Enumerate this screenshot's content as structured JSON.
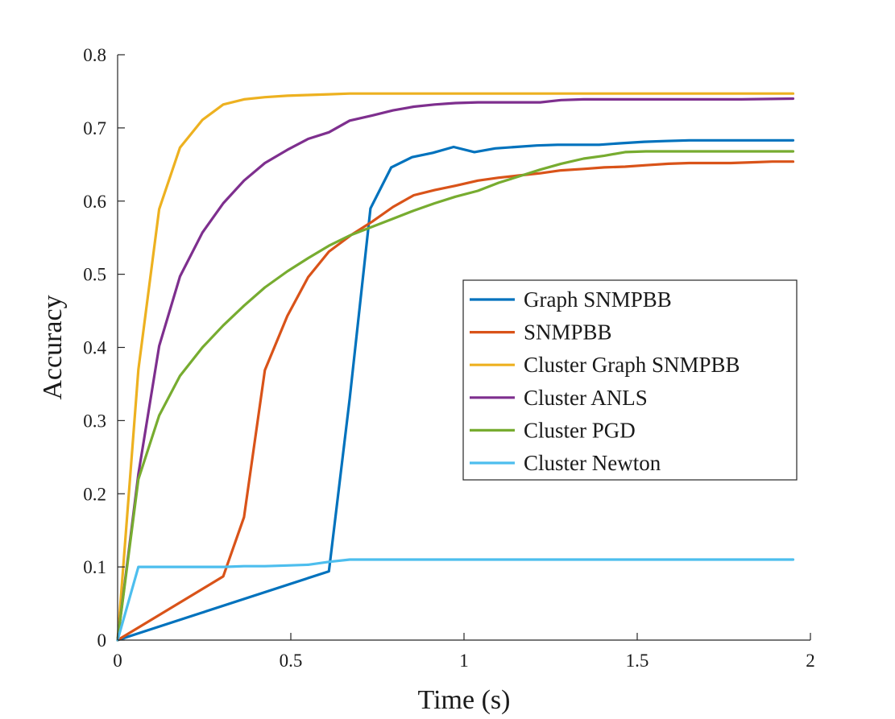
{
  "chart_data": {
    "type": "line",
    "title": "",
    "xlabel": "Time (s)",
    "ylabel": "Accuracy",
    "xlim": [
      0,
      2
    ],
    "ylim": [
      0,
      0.8
    ],
    "xticks": [
      0,
      0.5,
      1,
      1.5,
      2
    ],
    "xtick_labels": [
      "0",
      "0.5",
      "1",
      "1.5",
      "2"
    ],
    "yticks": [
      0,
      0.1,
      0.2,
      0.3,
      0.4,
      0.5,
      0.6,
      0.7,
      0.8
    ],
    "ytick_labels": [
      "0",
      "0.1",
      "0.2",
      "0.3",
      "0.4",
      "0.5",
      "0.6",
      "0.7",
      "0.8"
    ],
    "grid": false,
    "legend_position": "center-right",
    "series": [
      {
        "name": "Graph SNMPBB",
        "color": "#0072BD",
        "x": [
          0,
          0.61,
          0.67,
          0.73,
          0.79,
          0.85,
          0.91,
          0.97,
          1.03,
          1.09,
          1.15,
          1.21,
          1.27,
          1.33,
          1.39,
          1.45,
          1.52,
          1.58,
          1.65,
          1.72,
          1.8,
          1.88,
          1.95
        ],
        "y": [
          0,
          0.094,
          0.33,
          0.59,
          0.646,
          0.66,
          0.666,
          0.674,
          0.667,
          0.672,
          0.674,
          0.676,
          0.677,
          0.677,
          0.677,
          0.679,
          0.681,
          0.682,
          0.683,
          0.683,
          0.683,
          0.683,
          0.683
        ]
      },
      {
        "name": "SNMPBB",
        "color": "#D95319",
        "x": [
          0,
          0.305,
          0.365,
          0.425,
          0.49,
          0.55,
          0.61,
          0.675,
          0.735,
          0.795,
          0.855,
          0.915,
          0.975,
          1.04,
          1.1,
          1.16,
          1.22,
          1.28,
          1.345,
          1.405,
          1.465,
          1.525,
          1.59,
          1.65,
          1.71,
          1.77,
          1.83,
          1.89,
          1.95
        ],
        "y": [
          0,
          0.087,
          0.168,
          0.369,
          0.443,
          0.496,
          0.531,
          0.554,
          0.572,
          0.592,
          0.608,
          0.615,
          0.621,
          0.628,
          0.632,
          0.635,
          0.638,
          0.642,
          0.644,
          0.646,
          0.647,
          0.649,
          0.651,
          0.652,
          0.652,
          0.652,
          0.653,
          0.654,
          0.654
        ]
      },
      {
        "name": "Cluster Graph SNMPBB",
        "color": "#EDB120",
        "x": [
          0,
          0.06,
          0.12,
          0.18,
          0.245,
          0.305,
          0.365,
          0.425,
          0.49,
          0.55,
          0.61,
          0.67,
          0.79,
          1.0,
          1.3,
          1.6,
          1.95
        ],
        "y": [
          0,
          0.37,
          0.589,
          0.673,
          0.711,
          0.732,
          0.739,
          0.742,
          0.744,
          0.745,
          0.746,
          0.747,
          0.747,
          0.747,
          0.747,
          0.747,
          0.747
        ]
      },
      {
        "name": "Cluster ANLS",
        "color": "#7E2F8E",
        "x": [
          0,
          0.06,
          0.12,
          0.18,
          0.245,
          0.305,
          0.365,
          0.425,
          0.49,
          0.55,
          0.61,
          0.67,
          0.735,
          0.795,
          0.855,
          0.915,
          0.975,
          1.04,
          1.1,
          1.16,
          1.22,
          1.28,
          1.345,
          1.405,
          1.5,
          1.6,
          1.7,
          1.8,
          1.95
        ],
        "y": [
          0,
          0.227,
          0.402,
          0.497,
          0.557,
          0.597,
          0.628,
          0.652,
          0.67,
          0.685,
          0.694,
          0.71,
          0.717,
          0.724,
          0.729,
          0.732,
          0.734,
          0.735,
          0.735,
          0.735,
          0.735,
          0.738,
          0.739,
          0.739,
          0.739,
          0.739,
          0.739,
          0.739,
          0.74
        ]
      },
      {
        "name": "Cluster PGD",
        "color": "#77AC30",
        "x": [
          0,
          0.06,
          0.12,
          0.18,
          0.245,
          0.305,
          0.365,
          0.425,
          0.49,
          0.55,
          0.61,
          0.67,
          0.735,
          0.795,
          0.855,
          0.915,
          0.975,
          1.04,
          1.1,
          1.16,
          1.22,
          1.28,
          1.345,
          1.405,
          1.465,
          1.525,
          1.6,
          1.7,
          1.8,
          1.95
        ],
        "y": [
          0,
          0.22,
          0.307,
          0.361,
          0.4,
          0.43,
          0.457,
          0.482,
          0.504,
          0.522,
          0.539,
          0.553,
          0.565,
          0.576,
          0.587,
          0.597,
          0.606,
          0.614,
          0.625,
          0.634,
          0.643,
          0.651,
          0.658,
          0.662,
          0.667,
          0.668,
          0.668,
          0.668,
          0.668,
          0.668
        ]
      },
      {
        "name": "Cluster Newton",
        "color": "#4DBEEE",
        "x": [
          0,
          0.06,
          0.12,
          0.18,
          0.245,
          0.305,
          0.365,
          0.425,
          0.49,
          0.55,
          0.61,
          0.67,
          0.73,
          0.85,
          1.0,
          1.3,
          1.6,
          1.95
        ],
        "y": [
          0,
          0.1,
          0.1,
          0.1,
          0.1,
          0.1,
          0.101,
          0.101,
          0.102,
          0.103,
          0.107,
          0.11,
          0.11,
          0.11,
          0.11,
          0.11,
          0.11,
          0.11
        ]
      }
    ]
  }
}
